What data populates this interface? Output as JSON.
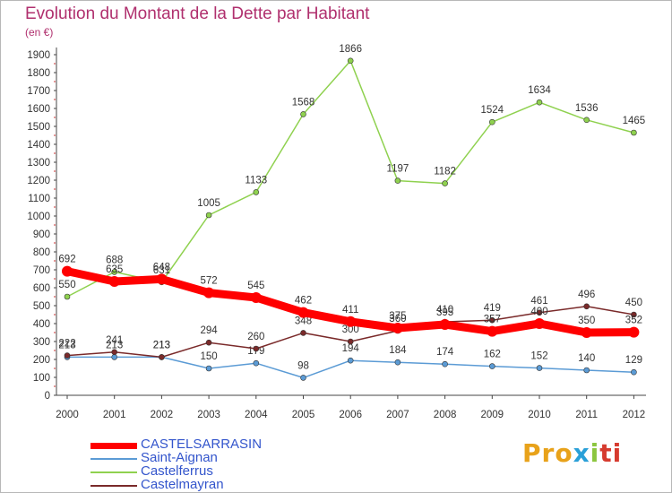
{
  "title": "Evolution du Montant de la Dette par Habitant",
  "subtitle": "(en €)",
  "chart_data": {
    "type": "line",
    "title": "Evolution du Montant de la Dette par Habitant",
    "subtitle": "(en €)",
    "x": [
      "2000",
      "2001",
      "2002",
      "2003",
      "2004",
      "2005",
      "2006",
      "2007",
      "2008",
      "2009",
      "2010",
      "2011",
      "2012"
    ],
    "yticks": [
      0,
      100,
      200,
      300,
      400,
      500,
      600,
      700,
      800,
      900,
      1000,
      1100,
      1200,
      1300,
      1400,
      1500,
      1600,
      1700,
      1800,
      1900
    ],
    "ylim": [
      0,
      1900
    ],
    "grid": false,
    "legend_position": "bottom-left",
    "series": [
      {
        "name": "CASTELSARRASIN",
        "color": "#ff0000",
        "values": [
          692,
          635,
          648,
          572,
          545,
          462,
          411,
          375,
          395,
          357,
          400,
          350,
          352
        ]
      },
      {
        "name": "Saint-Aignan",
        "color": "#5b9bd5",
        "values": [
          213,
          213,
          213,
          150,
          179,
          98,
          194,
          184,
          174,
          162,
          152,
          140,
          129
        ]
      },
      {
        "name": "Castelferrus",
        "color": "#8fd14f",
        "values": [
          550,
          688,
          631,
          1005,
          1133,
          1568,
          1866,
          1197,
          1182,
          1524,
          1634,
          1536,
          1465
        ]
      },
      {
        "name": "Castelmayran",
        "color": "#7a2a2a",
        "values": [
          222,
          241,
          213,
          294,
          260,
          348,
          300,
          360,
          410,
          419,
          461,
          496,
          450
        ]
      }
    ]
  },
  "logo": {
    "p1": "Pro",
    "p2": "x",
    "p3": "i",
    "p4": "ti"
  }
}
